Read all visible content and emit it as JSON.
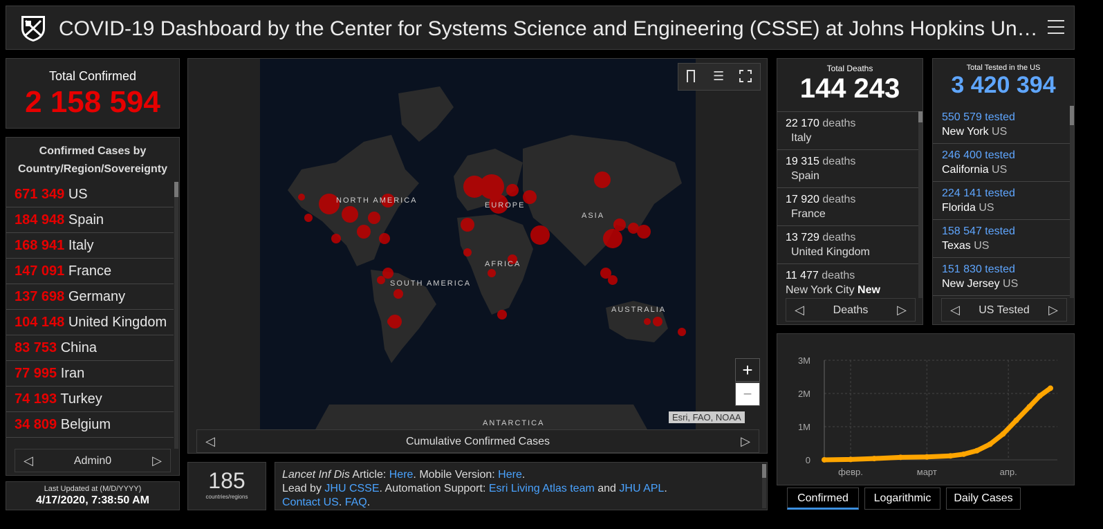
{
  "header": {
    "title": "COVID-19 Dashboard by the Center for Systems Science and Engineering (CSSE) at Johns Hopkins Un…",
    "menu_icon": "hamburger-icon"
  },
  "total_confirmed": {
    "label": "Total Confirmed",
    "value": "2 158 594"
  },
  "confirmed_list": {
    "title": "Confirmed Cases by Country/Region/Sovereignty",
    "rows": [
      {
        "value": "671 349",
        "name": "US"
      },
      {
        "value": "184 948",
        "name": "Spain"
      },
      {
        "value": "168 941",
        "name": "Italy"
      },
      {
        "value": "147 091",
        "name": "France"
      },
      {
        "value": "137 698",
        "name": "Germany"
      },
      {
        "value": "104 148",
        "name": "United Kingdom"
      },
      {
        "value": "83 753",
        "name": "China"
      },
      {
        "value": "77 995",
        "name": "Iran"
      },
      {
        "value": "74 193",
        "name": "Turkey"
      },
      {
        "value": "34 809",
        "name": "Belgium"
      }
    ],
    "pager_label": "Admin0"
  },
  "last_updated": {
    "label": "Last Updated at (M/D/YYYY)",
    "value": "4/17/2020, 7:38:50 AM"
  },
  "map": {
    "labels": {
      "north_america": "NORTH AMERICA",
      "europe": "EUROPE",
      "asia": "ASIA",
      "africa": "AFRICA",
      "south_america": "SOUTH AMERICA",
      "australia": "AUSTRALIA",
      "antarctica": "ANTARCTICA"
    },
    "attribution": "Esri, FAO, NOAA",
    "pager_label": "Cumulative Confirmed Cases",
    "zoom_in": "+",
    "zoom_out": "−"
  },
  "countries": {
    "value": "185",
    "label": "countries/regions"
  },
  "info": {
    "line1_italic": "Lancet Inf Dis",
    "line1_a": " Article: ",
    "line1_link1": "Here",
    "line1_b": ". Mobile Version: ",
    "line1_link2": "Here",
    "line1_c": ".",
    "line2_a": "Lead by ",
    "line2_link1": "JHU CSSE",
    "line2_b": ". Automation Support: ",
    "line2_link2": "Esri Living Atlas team",
    "line2_c": " and ",
    "line2_link3": "JHU APL",
    "line2_d": ". ",
    "line2_link4": "Contact US",
    "line2_e": ". ",
    "line2_link5": "FAQ",
    "line2_f": "."
  },
  "deaths": {
    "label": "Total Deaths",
    "value": "144 243",
    "rows": [
      {
        "value": "22 170",
        "unit": "deaths",
        "place": "Italy",
        "bold": ""
      },
      {
        "value": "19 315",
        "unit": "deaths",
        "place": "Spain",
        "bold": ""
      },
      {
        "value": "17 920",
        "unit": "deaths",
        "place": "France",
        "bold": ""
      },
      {
        "value": "13 729",
        "unit": "deaths",
        "place": "United Kingdom",
        "bold": ""
      },
      {
        "value": "11 477",
        "unit": "deaths",
        "place": "New York City",
        "bold": "New"
      }
    ],
    "pager_label": "Deaths"
  },
  "tested": {
    "label": "Total Tested in the US",
    "value": "3 420 394",
    "rows": [
      {
        "value": "550 579",
        "unit": "tested",
        "place": "New York",
        "country": "US"
      },
      {
        "value": "246 400",
        "unit": "tested",
        "place": "California",
        "country": "US"
      },
      {
        "value": "224 141",
        "unit": "tested",
        "place": "Florida",
        "country": "US"
      },
      {
        "value": "158 547",
        "unit": "tested",
        "place": "Texas",
        "country": "US"
      },
      {
        "value": "151 830",
        "unit": "tested",
        "place": "New Jersey",
        "country": "US"
      }
    ],
    "pager_label": "US Tested"
  },
  "chart_data": {
    "type": "line",
    "title": "",
    "xlabel": "",
    "ylabel": "",
    "ytick_labels": [
      "3M",
      "2M",
      "1M",
      "0"
    ],
    "xtick_labels": [
      "февр.",
      "март",
      "апр."
    ],
    "ylim": [
      0,
      3000000
    ],
    "x": [
      "2020-01-22",
      "2020-02-01",
      "2020-02-10",
      "2020-02-20",
      "2020-03-01",
      "2020-03-10",
      "2020-03-15",
      "2020-03-20",
      "2020-03-25",
      "2020-03-30",
      "2020-04-04",
      "2020-04-09",
      "2020-04-13",
      "2020-04-17"
    ],
    "series": [
      {
        "values": [
          560,
          12000,
          40000,
          76000,
          88000,
          119000,
          170000,
          275000,
          470000,
          780000,
          1190000,
          1600000,
          1930000,
          2158594
        ]
      }
    ],
    "color": "#ffa500"
  },
  "chart_tabs": {
    "confirmed": "Confirmed",
    "logarithmic": "Logarithmic",
    "daily": "Daily Cases"
  }
}
